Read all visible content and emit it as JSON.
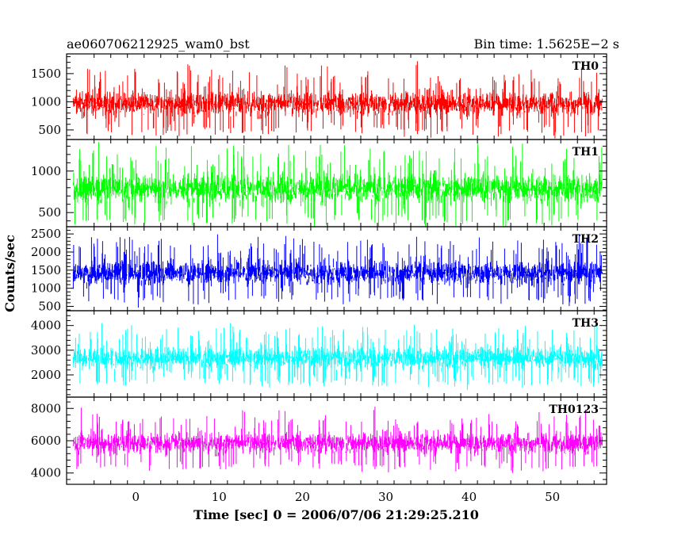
{
  "header": {
    "title_left": "ae060706212925_wam0_bst",
    "title_right": "Bin time: 1.5625E−2 s"
  },
  "chart_data": {
    "type": "line",
    "xlabel": "Time [sec] 0 = 2006/07/06 21:29:25.210",
    "ylabel": "Counts/sec",
    "xlim": [
      -8.3,
      56.5
    ],
    "x_range": [
      -7.5,
      56.0
    ],
    "x_ticks": [
      "0",
      "10",
      "20",
      "30",
      "40",
      "50"
    ],
    "x_tick_values": [
      0,
      10,
      20,
      30,
      40,
      50
    ],
    "panels": [
      {
        "name": "TH0",
        "color": "#ff0000",
        "ylim": [
          330,
          1850
        ],
        "mean": 950,
        "spread": 300,
        "y_ticks": [
          "500",
          "1000",
          "1500"
        ],
        "y_tick_values": [
          500,
          1000,
          1500
        ]
      },
      {
        "name": "TH1",
        "color": "#00ff00",
        "ylim": [
          330,
          1380
        ],
        "mean": 780,
        "spread": 240,
        "y_ticks": [
          "500",
          "1000"
        ],
        "y_tick_values": [
          500,
          1000
        ]
      },
      {
        "name": "TH2",
        "color": "#0000ff",
        "ylim": [
          380,
          2700
        ],
        "mean": 1400,
        "spread": 450,
        "y_ticks": [
          "500",
          "1000",
          "1500",
          "2000",
          "2500"
        ],
        "y_tick_values": [
          500,
          1000,
          1500,
          2000,
          2500
        ]
      },
      {
        "name": "TH3",
        "color": "#00ffff",
        "ylim": [
          1100,
          4600
        ],
        "mean": 2650,
        "spread": 620,
        "y_ticks": [
          "2000",
          "3000",
          "4000"
        ],
        "y_tick_values": [
          2000,
          3000,
          4000
        ]
      },
      {
        "name": "TH0123",
        "color": "#ff00ff",
        "ylim": [
          3300,
          8700
        ],
        "mean": 5800,
        "spread": 900,
        "y_ticks": [
          "4000",
          "6000",
          "8000"
        ],
        "y_tick_values": [
          4000,
          6000,
          8000
        ]
      }
    ]
  }
}
